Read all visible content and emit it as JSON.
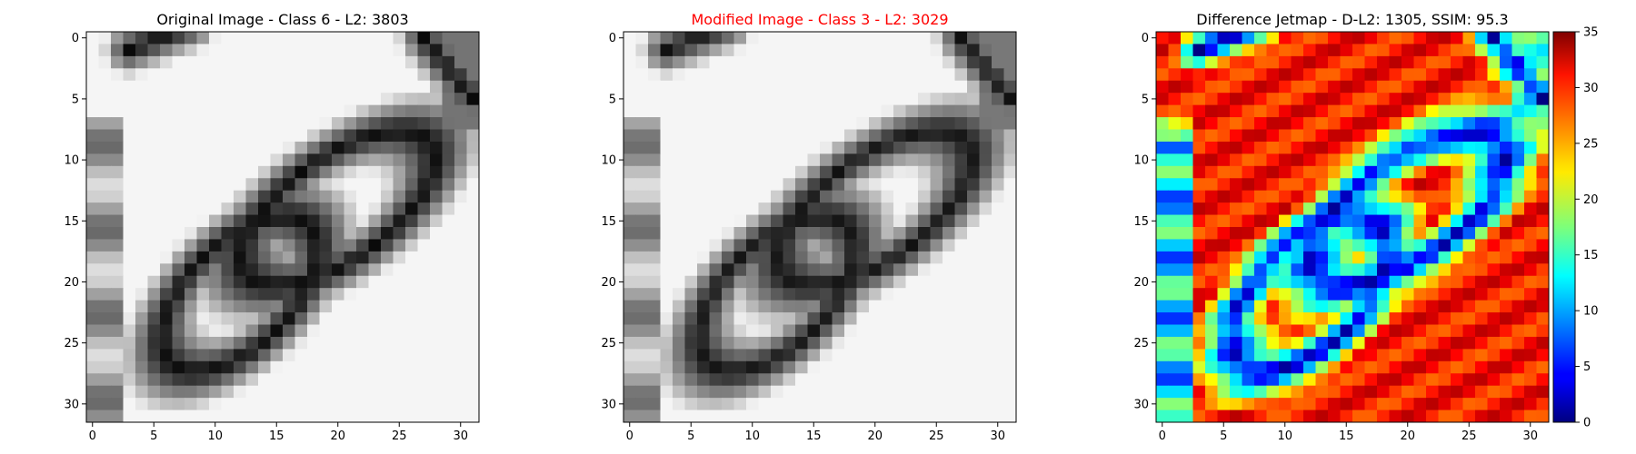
{
  "figure": {
    "panels": [
      {
        "title": "Original Image - Class 6 - L2: 3803",
        "title_color": "#000000",
        "grid": "off"
      },
      {
        "title": "Modified Image - Class 3 - L2: 3029",
        "title_color": "#ff0000",
        "grid": "off"
      },
      {
        "title": "Difference Jetmap - D-L2: 1305, SSIM: 95.3",
        "title_color": "#000000",
        "grid": "off"
      }
    ],
    "colorbar": {
      "ticks": [
        "0",
        "5",
        "10",
        "15",
        "20",
        "25",
        "30",
        "35"
      ],
      "colormap": "jet",
      "range": [
        0,
        35
      ]
    }
  },
  "chart_data": [
    {
      "type": "heatmap",
      "title": "Original Image - Class 6 - L2: 3803",
      "colormap": "gray",
      "xlim": [
        -0.5,
        31.5
      ],
      "ylim": [
        31.5,
        -0.5
      ],
      "xticks": [
        "0",
        "5",
        "10",
        "15",
        "20",
        "25",
        "30"
      ],
      "yticks": [
        "0",
        "5",
        "10",
        "15",
        "20",
        "25",
        "30"
      ],
      "rows": 32,
      "cols": 32,
      "description": "handwritten digit resembling an '8' drawn diagonally, dark strokes on light background"
    },
    {
      "type": "heatmap",
      "title": "Modified Image - Class 3 - L2: 3029",
      "colormap": "gray",
      "xlim": [
        -0.5,
        31.5
      ],
      "ylim": [
        31.5,
        -0.5
      ],
      "xticks": [
        "0",
        "5",
        "10",
        "15",
        "20",
        "25",
        "30"
      ],
      "yticks": [
        "0",
        "5",
        "10",
        "15",
        "20",
        "25",
        "30"
      ],
      "rows": 32,
      "cols": 32
    },
    {
      "type": "heatmap",
      "title": "Difference Jetmap - D-L2: 1305, SSIM: 95.3",
      "colormap": "jet",
      "xlim": [
        -0.5,
        31.5
      ],
      "ylim": [
        31.5,
        -0.5
      ],
      "xticks": [
        "0",
        "5",
        "10",
        "15",
        "20",
        "25",
        "30"
      ],
      "yticks": [
        "0",
        "5",
        "10",
        "15",
        "20",
        "25",
        "30"
      ],
      "value_range": [
        0,
        35
      ],
      "rows": 32,
      "cols": 32
    }
  ]
}
